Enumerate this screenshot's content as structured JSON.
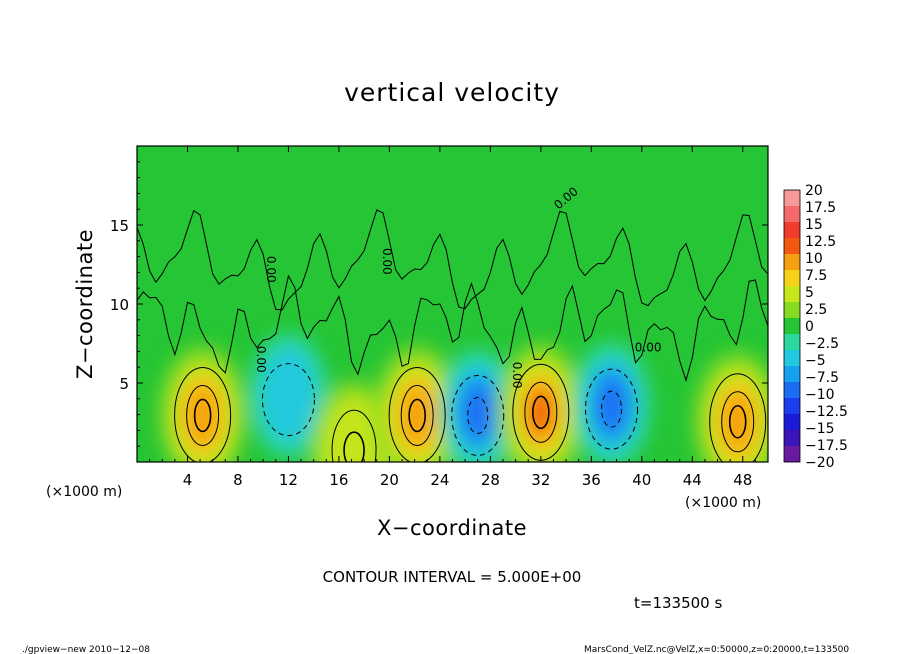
{
  "chart_data": {
    "type": "heatmap",
    "title": "vertical velocity",
    "xlabel": "X−coordinate",
    "ylabel": "Z−coordinate",
    "x_unit": "(×1000 m)",
    "xlim": [
      0,
      50
    ],
    "ylim": [
      0,
      20
    ],
    "x_ticks": [
      "4",
      "8",
      "12",
      "16",
      "20",
      "24",
      "28",
      "32",
      "36",
      "40",
      "44",
      "48"
    ],
    "x_tick_values": [
      4,
      8,
      12,
      16,
      20,
      24,
      28,
      32,
      36,
      40,
      44,
      48
    ],
    "y_ticks": [
      "5",
      "10",
      "15"
    ],
    "y_tick_values": [
      5,
      10,
      15
    ],
    "colorbar": {
      "labels": [
        "20",
        "17.5",
        "15",
        "12.5",
        "10",
        "7.5",
        "5",
        "2.5",
        "0",
        "−2.5",
        "−5",
        "−7.5",
        "−10",
        "−12.5",
        "−15",
        "−17.5",
        "−20"
      ],
      "values": [
        20,
        17.5,
        15,
        12.5,
        10,
        7.5,
        5,
        2.5,
        0,
        -2.5,
        -5,
        -7.5,
        -10,
        -12.5,
        -15,
        -17.5,
        -20
      ],
      "colors": [
        "#f79a9a",
        "#f46a6a",
        "#f03c2a",
        "#f25a12",
        "#f5a010",
        "#f7d21a",
        "#c8e61c",
        "#86da22",
        "#25c535",
        "#2cd8a0",
        "#20c8e0",
        "#18a0f0",
        "#1c6cf4",
        "#1c3cf0",
        "#1a1ad8",
        "#3a14b8",
        "#6a1aa0"
      ]
    },
    "cells_features": [
      {
        "kind": "updraft",
        "x": 5.2,
        "z": 3.2,
        "peak": 12
      },
      {
        "kind": "downdraft",
        "x": 12.0,
        "z": 4.2,
        "peak": -7
      },
      {
        "kind": "updraft",
        "x": 17.2,
        "z": 1.0,
        "peak": 6
      },
      {
        "kind": "updraft",
        "x": 22.2,
        "z": 3.2,
        "peak": 10
      },
      {
        "kind": "downdraft",
        "x": 27.0,
        "z": 3.2,
        "peak": -12
      },
      {
        "kind": "updraft",
        "x": 32.0,
        "z": 3.4,
        "peak": 14
      },
      {
        "kind": "downdraft",
        "x": 37.6,
        "z": 3.6,
        "peak": -10
      },
      {
        "kind": "updraft",
        "x": 47.6,
        "z": 2.8,
        "peak": 10
      }
    ],
    "contour_label": "0.00"
  },
  "annotations": {
    "contour_interval": "CONTOUR INTERVAL = 5.000E+00",
    "time": "t=133500 s",
    "footer_left": "./gpview−new  2010−12−08",
    "footer_right": "MarsCond_VelZ.nc@VelZ,x=0:50000,z=0:20000,t=133500"
  }
}
